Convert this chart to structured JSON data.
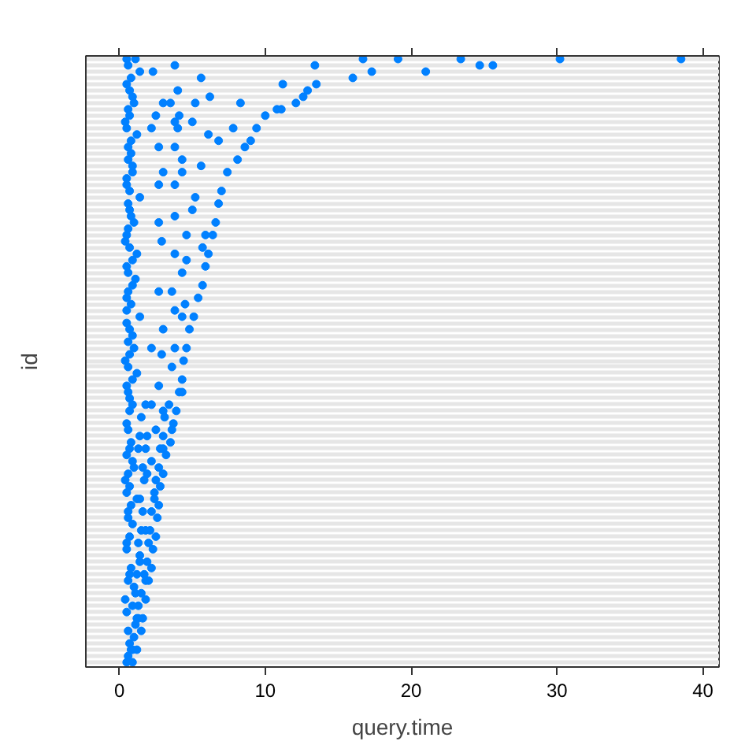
{
  "chart_data": {
    "type": "scatter",
    "orientation": "horizontal",
    "xlabel": "query.time",
    "ylabel": "id",
    "marker": "circle",
    "grid": "y",
    "xlim": [
      -2.3,
      41.1
    ],
    "xticks": [
      0,
      10,
      20,
      30,
      40
    ],
    "categories": [
      null,
      null,
      null,
      null,
      null,
      null,
      null,
      null,
      null,
      null,
      null,
      null,
      null,
      null,
      null,
      null,
      null,
      null,
      null,
      null,
      null,
      null,
      null,
      null,
      null,
      null,
      null,
      null,
      null,
      null,
      null,
      null,
      null,
      null,
      null,
      null,
      null,
      null,
      null,
      null,
      null,
      null,
      null,
      null,
      null,
      null,
      null,
      null,
      null,
      null,
      null,
      null,
      null,
      null,
      null,
      null,
      null,
      null,
      null,
      null,
      null,
      null,
      null,
      null,
      null,
      null,
      null,
      null,
      null,
      null,
      null,
      null,
      null,
      null,
      null,
      null,
      null,
      null,
      null,
      null,
      null,
      null,
      null,
      null,
      null,
      null,
      null,
      null,
      null,
      null,
      null,
      null,
      null,
      null,
      null,
      null,
      null
    ],
    "series": [
      {
        "color": "#0080ff",
        "values": [
          0.5,
          0.6,
          1.4,
          0.8,
          0.5,
          0.7,
          0.9,
          1.0,
          0.6,
          0.7,
          0.4,
          0.5,
          1.2,
          0.8,
          0.6,
          0.8,
          0.6,
          0.9,
          0.9,
          0.5,
          0.5,
          0.7,
          1.4,
          0.6,
          0.7,
          0.8,
          1.0,
          0.6,
          0.5,
          0.4,
          0.7,
          1.2,
          0.9,
          0.5,
          0.6,
          1.1,
          0.9,
          0.6,
          0.5,
          0.8,
          0.5,
          1.4,
          0.5,
          0.7,
          0.9,
          0.6,
          1.0,
          0.7,
          0.4,
          0.6,
          1.2,
          0.9,
          0.5,
          0.6,
          0.7,
          0.9,
          0.7,
          1.5,
          0.5,
          0.6,
          1.4,
          0.8,
          0.7,
          0.5,
          0.9,
          1.0,
          0.6,
          0.4,
          0.7,
          0.5,
          1.2,
          0.8,
          0.6,
          0.6,
          0.9,
          1.5,
          0.7,
          0.5,
          0.5,
          1.4,
          1.4,
          0.8,
          0.7,
          0.6,
          1.0,
          1.1,
          0.4,
          0.9,
          0.5,
          1.2,
          1.1,
          0.6,
          1.0,
          0.7,
          0.8,
          0.6,
          0.5
        ]
      },
      {
        "color": "#0080ff",
        "values": [
          1.1,
          3.8,
          2.3,
          5.6,
          11.2,
          4.0,
          6.2,
          3.0,
          10.8,
          2.5,
          3.8,
          2.2,
          6.1,
          6.8,
          2.7,
          null,
          4.3,
          5.6,
          3.0,
          null,
          2.7,
          7.0,
          5.2,
          6.8,
          5.0,
          3.8,
          2.7,
          null,
          4.6,
          2.9,
          5.7,
          3.8,
          4.6,
          5.9,
          4.3,
          null,
          5.7,
          2.7,
          5.4,
          4.5,
          3.8,
          4.3,
          null,
          3.0,
          null,
          null,
          2.2,
          2.9,
          4.4,
          3.6,
          null,
          4.3,
          2.7,
          4.1,
          null,
          1.8,
          3.0,
          3.1,
          3.7,
          2.5,
          1.9,
          3.5,
          1.3,
          3.2,
          2.2,
          1.6,
          1.9,
          1.7,
          2.8,
          2.4,
          1.4,
          2.7,
          1.6,
          2.6,
          null,
          1.8,
          2.5,
          1.3,
          2.3,
          null,
          1.9,
          2.2,
          1.2,
          1.8,
          null,
          1.5,
          1.8,
          1.3,
          null,
          1.3,
          null,
          1.5,
          null,
          null,
          0.9,
          null,
          0.9
        ]
      },
      {
        "color": "#0080ff",
        "values": [
          16.7,
          13.4,
          17.3,
          16.0,
          13.5,
          12.9,
          12.6,
          3.5,
          11.1,
          4.1,
          5.0,
          4.0,
          null,
          9.0,
          3.8,
          null,
          8.1,
          null,
          4.3,
          null,
          3.8,
          null,
          null,
          null,
          null,
          null,
          6.6,
          null,
          5.9,
          null,
          null,
          6.1,
          null,
          null,
          null,
          null,
          null,
          3.6,
          null,
          null,
          null,
          5.1,
          null,
          4.8,
          null,
          null,
          3.8,
          null,
          null,
          null,
          null,
          null,
          null,
          4.3,
          null,
          2.2,
          3.9,
          null,
          null,
          3.6,
          3.0,
          null,
          1.8,
          null,
          null,
          2.7,
          3.0,
          2.5,
          null,
          null,
          2.4,
          null,
          2.2,
          null,
          null,
          2.1,
          null,
          2.0,
          null,
          null,
          null,
          null,
          1.7,
          2.0,
          null,
          null,
          null,
          null,
          null,
          1.6,
          null,
          null,
          null,
          null,
          1.2,
          null,
          null
        ]
      },
      {
        "color": "#0080ff",
        "values": [
          19.1,
          24.7,
          21.0,
          null,
          null,
          null,
          null,
          5.2,
          null,
          10.0,
          null,
          7.8,
          null,
          null,
          8.6,
          null,
          null,
          null,
          7.4,
          null,
          null,
          null,
          null,
          null,
          null,
          null,
          null,
          null,
          6.4,
          null,
          null,
          null,
          null,
          null,
          null,
          null,
          null,
          null,
          null,
          null,
          null,
          null,
          null,
          null,
          null,
          null,
          4.6,
          null,
          null,
          null,
          null,
          null,
          null,
          null,
          null,
          3.4,
          null,
          null,
          null,
          null,
          null,
          null,
          2.8,
          null,
          null,
          null,
          null,
          null,
          null,
          null,
          null,
          null,
          null,
          null,
          null,
          null,
          null,
          null,
          null,
          null,
          null,
          null,
          null,
          null,
          null,
          null,
          null,
          null,
          null,
          null,
          null,
          null,
          null,
          null,
          null,
          null,
          null
        ]
      },
      {
        "color": "#0080ff",
        "values": [
          23.4,
          25.6,
          null,
          null,
          null,
          null,
          null,
          8.3,
          null,
          null,
          null,
          9.4,
          null,
          null,
          null,
          null,
          null,
          null,
          null,
          null,
          null,
          null,
          null,
          null,
          null,
          null,
          null,
          null,
          null,
          null,
          null,
          null,
          null,
          null,
          null,
          null,
          null,
          null,
          null,
          null,
          null,
          null,
          null,
          null,
          null,
          null,
          null,
          null,
          null,
          null,
          null,
          null,
          null,
          null,
          null,
          null,
          null,
          null,
          null,
          null,
          null,
          null,
          3.0,
          null,
          null,
          null,
          null,
          null,
          null,
          null,
          null,
          null,
          null,
          null,
          null,
          null,
          null,
          null,
          null,
          null,
          null,
          null,
          null,
          null,
          null,
          null,
          null,
          null,
          null,
          null,
          null,
          null,
          null,
          null,
          null,
          null,
          null
        ]
      },
      {
        "color": "#0080ff",
        "values": [
          30.2,
          null,
          null,
          null,
          null,
          null,
          null,
          12.1,
          null,
          null,
          null,
          null,
          null,
          null,
          null,
          null,
          null,
          null,
          null,
          null,
          null,
          null,
          null,
          null,
          null,
          null,
          null,
          null,
          null,
          null,
          null,
          null,
          null,
          null,
          null,
          null,
          null,
          null,
          null,
          null,
          null,
          null,
          null,
          null,
          null,
          null,
          null,
          null,
          null,
          null,
          null,
          null,
          null,
          null,
          null,
          null,
          null,
          null,
          null,
          null,
          null,
          null,
          null,
          null,
          null,
          null,
          null,
          null,
          null,
          null,
          null,
          null,
          null,
          null,
          null,
          null,
          null,
          null,
          null,
          null,
          null,
          null,
          null,
          null,
          null,
          null,
          null,
          null,
          null,
          null,
          null,
          null,
          null,
          null,
          null,
          null,
          null
        ]
      },
      {
        "color": "#0080ff",
        "values": [
          38.5,
          null,
          null,
          null,
          null,
          null,
          null,
          null,
          null,
          null,
          null,
          null,
          null,
          null,
          null,
          null,
          null,
          null,
          null,
          null,
          null,
          null,
          null,
          null,
          null,
          null,
          null,
          null,
          null,
          null,
          null,
          null,
          null,
          null,
          null,
          null,
          null,
          null,
          null,
          null,
          null,
          null,
          null,
          null,
          null,
          null,
          null,
          null,
          null,
          null,
          null,
          null,
          null,
          null,
          null,
          null,
          null,
          null,
          null,
          null,
          null,
          null,
          null,
          null,
          null,
          null,
          null,
          null,
          null,
          null,
          null,
          null,
          null,
          null,
          null,
          null,
          null,
          null,
          null,
          null,
          null,
          null,
          null,
          null,
          null,
          null,
          null,
          null,
          null,
          null,
          null,
          null,
          null,
          null,
          null,
          null,
          null
        ]
      }
    ]
  }
}
